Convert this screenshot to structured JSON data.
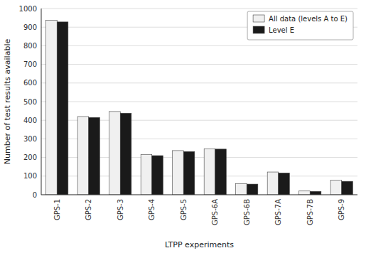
{
  "chart_data": {
    "type": "bar",
    "xlabel": "LTPP experiments",
    "ylabel": "Number of test results available",
    "categories": [
      "GPS-1",
      "GPS-2",
      "GPS-3",
      "GPS-4",
      "GPS-5",
      "GPS-6A",
      "GPS-6B",
      "GPS-7A",
      "GPS-7B",
      "GPS-9"
    ],
    "series": [
      {
        "name": "All data (levels A to E)",
        "color": "#f0f0f0",
        "values": [
          937,
          420,
          447,
          215,
          237,
          247,
          60,
          122,
          20,
          78
        ]
      },
      {
        "name": "Level E",
        "color": "#1a1a1a",
        "values": [
          928,
          415,
          438,
          210,
          232,
          245,
          57,
          117,
          18,
          72
        ]
      }
    ],
    "ylim": [
      0,
      1000
    ],
    "yticks": [
      0,
      100,
      200,
      300,
      400,
      500,
      600,
      700,
      800,
      900,
      1000
    ],
    "grid": true,
    "legend": "upper right"
  }
}
